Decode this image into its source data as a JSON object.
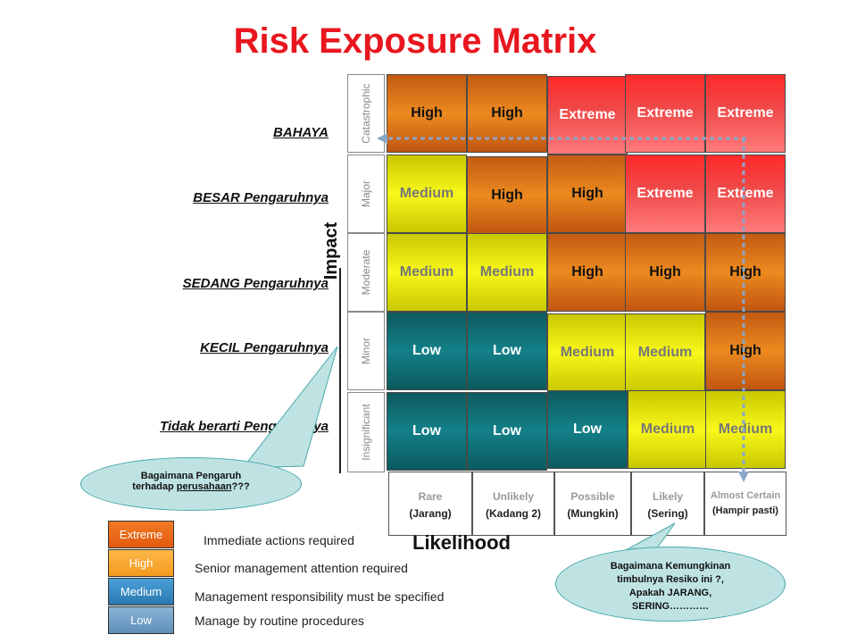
{
  "title": "Risk Exposure Matrix",
  "side_labels": [
    "BAHAYA",
    "BESAR Pengaruhnya",
    "SEDANG  Pengaruhnya",
    "KECIL Pengaruhnya",
    "Tidak berarti  Pengaruhnya"
  ],
  "impact_axis_label": "Impact",
  "impact_levels": [
    "Catastrophic",
    "Major",
    "Moderate",
    "Minor",
    "Insignificant"
  ],
  "matrix": [
    [
      "High",
      "High",
      "Extreme",
      "Extreme",
      "Extreme"
    ],
    [
      "Medium",
      "High",
      "High",
      "Extreme",
      "Extreme"
    ],
    [
      "Medium",
      "Medium",
      "High",
      "High",
      "High"
    ],
    [
      "Low",
      "Low",
      "Medium",
      "Medium",
      "High"
    ],
    [
      "Low",
      "Low",
      "Low",
      "Medium",
      "Medium"
    ]
  ],
  "likelihood_levels": [
    {
      "en": "Rare",
      "id": "(Jarang)"
    },
    {
      "en": "Unlikely",
      "id": "(Kadang 2)"
    },
    {
      "en": "Possible",
      "id": "(Mungkin)"
    },
    {
      "en": "Likely",
      "id": "(Sering)"
    },
    {
      "en": "Almost Certain",
      "id": "(Hampir pasti)"
    }
  ],
  "likelihood_axis_label": "Likelihood",
  "legend": [
    {
      "label": "Extreme",
      "desc": "Immediate actions required",
      "color": "#e8651a"
    },
    {
      "label": "High",
      "desc": "Senior management attention required",
      "color": "#f5a623"
    },
    {
      "label": "Medium",
      "desc": "Management responsibility must be specified",
      "color": "#3d8fc4"
    },
    {
      "label": "Low",
      "desc": "Manage by routine procedures",
      "color": "#6f9fc4"
    }
  ],
  "callout_left": {
    "line1": "Bagaimana Pengaruh",
    "line2_pre": "terhadap ",
    "line2_link": "perusahaan",
    "line2_post": "???"
  },
  "callout_right": {
    "line1": "Bagaimana Kemungkinan",
    "line2": "timbulnya Resiko ini ?,",
    "line3": "Apakah  JARANG,",
    "line4": "SERING…………"
  },
  "colors": {
    "title": "#e8161e",
    "extreme": "#ff3b3b",
    "high": "#e8811c",
    "medium": "#f2f20f",
    "low": "#117a80",
    "callout": "#bfe3e3",
    "arrow": "#8aa6c8"
  }
}
